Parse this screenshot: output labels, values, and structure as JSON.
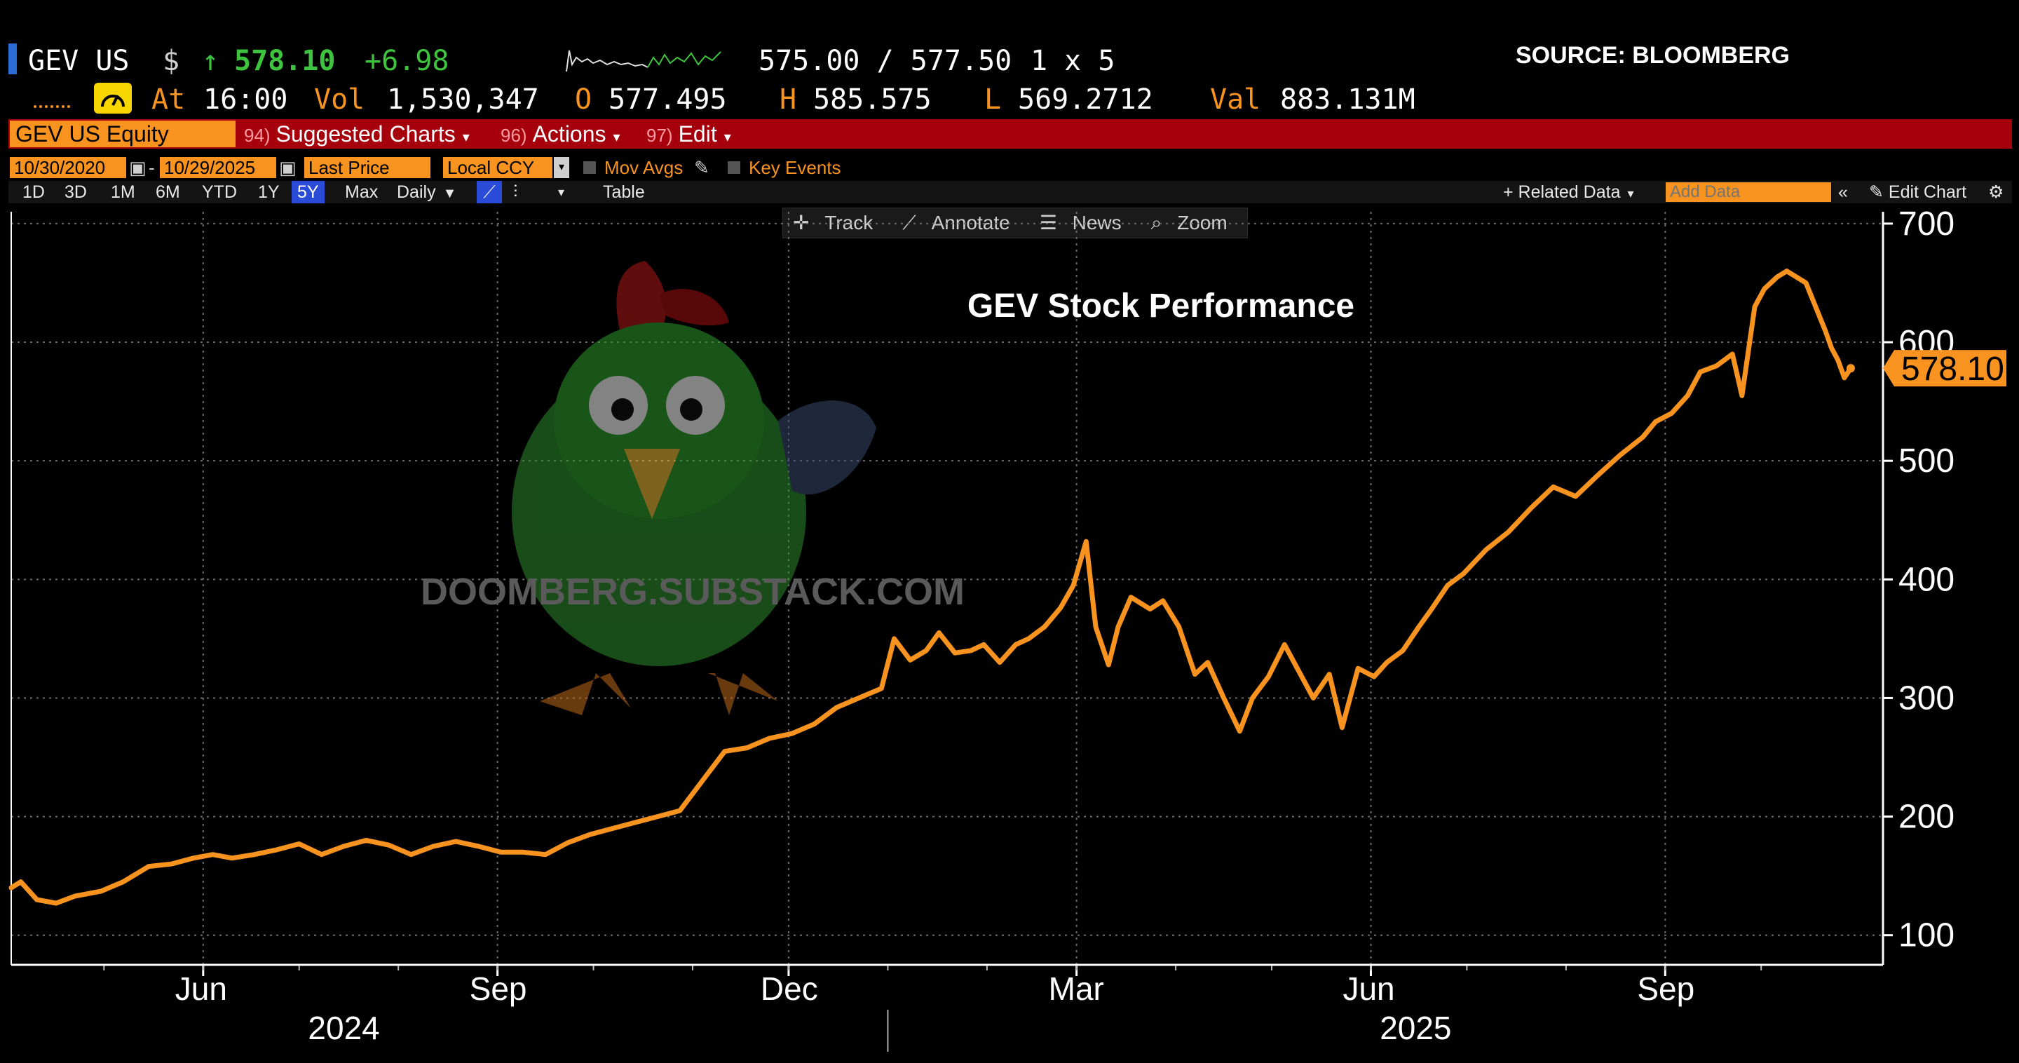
{
  "quote": {
    "ticker": "GEV US",
    "currency_symbol": "$",
    "arrow": "↑",
    "last": "578.10",
    "change": "+6.98",
    "bid_ask": "575.00 / 577.50",
    "size": "1 x 5",
    "source": "SOURCE: BLOOMBERG",
    "at_label": "At",
    "time": "16:00",
    "vol_label": "Vol",
    "volume": "1,530,347",
    "open_label": "O",
    "open": "577.495",
    "high_label": "H",
    "high": "585.575",
    "low_label": "L",
    "low": "569.2712",
    "val_label": "Val",
    "value": "883.131M"
  },
  "menu": {
    "security": "GEV US Equity",
    "suggested_num": "94)",
    "suggested": "Suggested Charts",
    "actions_num": "96)",
    "actions": "Actions",
    "edit_num": "97)",
    "edit": "Edit"
  },
  "controls": {
    "start_date": "10/30/2020",
    "end_date": "10/29/2025",
    "field": "Last Price",
    "currency": "Local CCY",
    "mov_avgs": "Mov Avgs",
    "key_events": "Key Events"
  },
  "toolbar": {
    "ranges": [
      "1D",
      "3D",
      "1M",
      "6M",
      "YTD",
      "1Y",
      "5Y",
      "Max"
    ],
    "selected_range": "5Y",
    "frequency": "Daily",
    "table": "Table",
    "related_data": "+ Related Data",
    "add_data_placeholder": "Add Data",
    "edit_chart": "Edit Chart"
  },
  "chart_tools": {
    "track": "Track",
    "annotate": "Annotate",
    "news": "News",
    "zoom": "Zoom"
  },
  "watermark": "DOOMBERG.SUBSTACK.COM",
  "colors": {
    "line": "#f7931e",
    "menu_bar": "#a5000c",
    "accent_orange": "#f7931e",
    "up_green": "#3ec43e",
    "selected_blue": "#2a4bd8"
  },
  "chart_data": {
    "type": "line",
    "title": "GEV Stock Performance",
    "last_value_label": "578.10",
    "y_ticks": [
      100,
      200,
      300,
      400,
      500,
      600,
      700
    ],
    "ylim": [
      75,
      710
    ],
    "x_range": [
      "2024-04-02",
      "2025-10-29"
    ],
    "x_tick_labels": [
      {
        "label": "Jun",
        "date": "2024-06-01"
      },
      {
        "label": "Sep",
        "date": "2024-09-01"
      },
      {
        "label": "Dec",
        "date": "2024-12-01"
      },
      {
        "label": "Mar",
        "date": "2025-03-01"
      },
      {
        "label": "Jun",
        "date": "2025-06-01"
      },
      {
        "label": "Sep",
        "date": "2025-09-01"
      }
    ],
    "year_labels": [
      {
        "label": "2024",
        "date": "2024-07-15"
      },
      {
        "label": "2025",
        "date": "2025-06-15"
      }
    ],
    "grid": true,
    "series": [
      {
        "values": [
          [
            "2024-04-02",
            140
          ],
          [
            "2024-04-05",
            145
          ],
          [
            "2024-04-10",
            130
          ],
          [
            "2024-04-16",
            127
          ],
          [
            "2024-04-22",
            133
          ],
          [
            "2024-04-30",
            137
          ],
          [
            "2024-05-07",
            145
          ],
          [
            "2024-05-15",
            158
          ],
          [
            "2024-05-22",
            160
          ],
          [
            "2024-05-29",
            165
          ],
          [
            "2024-06-04",
            168
          ],
          [
            "2024-06-10",
            165
          ],
          [
            "2024-06-17",
            168
          ],
          [
            "2024-06-24",
            172
          ],
          [
            "2024-07-01",
            177
          ],
          [
            "2024-07-08",
            168
          ],
          [
            "2024-07-15",
            175
          ],
          [
            "2024-07-22",
            180
          ],
          [
            "2024-07-29",
            176
          ],
          [
            "2024-08-05",
            168
          ],
          [
            "2024-08-12",
            175
          ],
          [
            "2024-08-19",
            179
          ],
          [
            "2024-08-26",
            175
          ],
          [
            "2024-09-02",
            170
          ],
          [
            "2024-09-09",
            170
          ],
          [
            "2024-09-16",
            168
          ],
          [
            "2024-09-23",
            178
          ],
          [
            "2024-09-30",
            185
          ],
          [
            "2024-10-07",
            190
          ],
          [
            "2024-10-14",
            195
          ],
          [
            "2024-10-21",
            200
          ],
          [
            "2024-10-28",
            205
          ],
          [
            "2024-11-04",
            230
          ],
          [
            "2024-11-11",
            255
          ],
          [
            "2024-11-18",
            258
          ],
          [
            "2024-11-25",
            266
          ],
          [
            "2024-12-02",
            270
          ],
          [
            "2024-12-09",
            278
          ],
          [
            "2024-12-16",
            292
          ],
          [
            "2024-12-23",
            300
          ],
          [
            "2024-12-30",
            308
          ],
          [
            "2025-01-03",
            350
          ],
          [
            "2025-01-08",
            332
          ],
          [
            "2025-01-13",
            340
          ],
          [
            "2025-01-17",
            355
          ],
          [
            "2025-01-22",
            338
          ],
          [
            "2025-01-27",
            340
          ],
          [
            "2025-01-31",
            345
          ],
          [
            "2025-02-05",
            330
          ],
          [
            "2025-02-10",
            345
          ],
          [
            "2025-02-14",
            350
          ],
          [
            "2025-02-19",
            360
          ],
          [
            "2025-02-24",
            376
          ],
          [
            "2025-02-28",
            395
          ],
          [
            "2025-03-04",
            432
          ],
          [
            "2025-03-07",
            360
          ],
          [
            "2025-03-11",
            328
          ],
          [
            "2025-03-14",
            360
          ],
          [
            "2025-03-18",
            385
          ],
          [
            "2025-03-24",
            375
          ],
          [
            "2025-03-28",
            382
          ],
          [
            "2025-04-02",
            360
          ],
          [
            "2025-04-07",
            320
          ],
          [
            "2025-04-11",
            330
          ],
          [
            "2025-04-16",
            300
          ],
          [
            "2025-04-21",
            272
          ],
          [
            "2025-04-25",
            300
          ],
          [
            "2025-04-30",
            318
          ],
          [
            "2025-05-05",
            345
          ],
          [
            "2025-05-09",
            325
          ],
          [
            "2025-05-14",
            300
          ],
          [
            "2025-05-19",
            320
          ],
          [
            "2025-05-23",
            275
          ],
          [
            "2025-05-28",
            325
          ],
          [
            "2025-06-02",
            318
          ],
          [
            "2025-06-06",
            330
          ],
          [
            "2025-06-11",
            340
          ],
          [
            "2025-06-16",
            360
          ],
          [
            "2025-06-20",
            375
          ],
          [
            "2025-06-25",
            395
          ],
          [
            "2025-06-30",
            405
          ],
          [
            "2025-07-07",
            425
          ],
          [
            "2025-07-14",
            440
          ],
          [
            "2025-07-21",
            460
          ],
          [
            "2025-07-28",
            478
          ],
          [
            "2025-08-04",
            470
          ],
          [
            "2025-08-11",
            488
          ],
          [
            "2025-08-18",
            505
          ],
          [
            "2025-08-25",
            520
          ],
          [
            "2025-08-29",
            533
          ],
          [
            "2025-09-03",
            540
          ],
          [
            "2025-09-08",
            555
          ],
          [
            "2025-09-12",
            575
          ],
          [
            "2025-09-17",
            580
          ],
          [
            "2025-09-22",
            590
          ],
          [
            "2025-09-25",
            555
          ],
          [
            "2025-09-29",
            630
          ],
          [
            "2025-10-02",
            645
          ],
          [
            "2025-10-06",
            655
          ],
          [
            "2025-10-09",
            660
          ],
          [
            "2025-10-12",
            655
          ],
          [
            "2025-10-15",
            650
          ],
          [
            "2025-10-18",
            630
          ],
          [
            "2025-10-21",
            610
          ],
          [
            "2025-10-23",
            595
          ],
          [
            "2025-10-25",
            585
          ],
          [
            "2025-10-27",
            570
          ],
          [
            "2025-10-29",
            578.1
          ]
        ]
      }
    ]
  }
}
